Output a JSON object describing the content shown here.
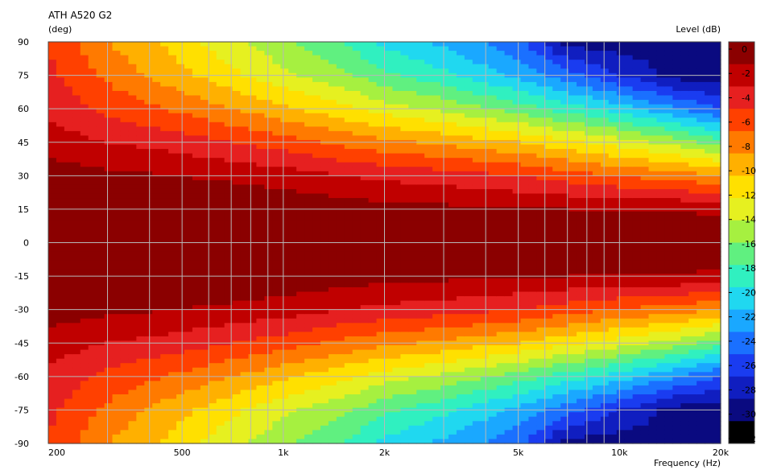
{
  "chart_data": {
    "type": "heatmap",
    "title": "ATH A520 G2",
    "ylabel": "(deg)",
    "xlabel": "Frequency  (Hz)",
    "colorbar_label": "Level  (dB)",
    "x_scale": "log",
    "xlim": [
      200,
      20000
    ],
    "ylim": [
      -90,
      90
    ],
    "x_ticks": [
      200,
      500,
      1000,
      2000,
      5000,
      10000,
      20000
    ],
    "x_tick_labels": [
      "200",
      "500",
      "1k",
      "2k",
      "5k",
      "10k",
      "20k"
    ],
    "y_ticks": [
      90,
      75,
      60,
      45,
      30,
      15,
      0,
      -15,
      -30,
      -45,
      -60,
      -75,
      -90
    ],
    "y_tick_labels": [
      "90",
      "75",
      "60",
      "45",
      "30",
      "15",
      "0",
      "-15",
      "-30",
      "-45",
      "-60",
      "-75",
      "-90"
    ],
    "colorbar_ticks": [
      0,
      -2,
      -4,
      -6,
      -8,
      -10,
      -12,
      -14,
      -16,
      -18,
      -20,
      -22,
      -24,
      -26,
      -28,
      -30,
      -32
    ],
    "colorbar_tick_labels": [
      "0",
      "-2",
      "-4",
      "-6",
      "-8",
      "-10",
      "-12",
      "-14",
      "-16",
      "-18",
      "-20",
      "-22",
      "-24",
      "-26",
      "-28",
      "-30",
      "-32"
    ],
    "level_range_db": [
      -33,
      0
    ],
    "grid": true,
    "colorbar_colors": [
      "#8b0000",
      "#c00000",
      "#e62020",
      "#ff4000",
      "#ff7a00",
      "#ffb000",
      "#ffe000",
      "#e6f020",
      "#a6f040",
      "#60f080",
      "#30f0c0",
      "#20d8f0",
      "#1aa8ff",
      "#1a70ff",
      "#1a3cf0",
      "#101ec0",
      "#0a0a80",
      "#000000"
    ],
    "contour_level_at_angle": {
      "frequencies_hz": [
        200,
        300,
        500,
        700,
        1000,
        1500,
        2000,
        3000,
        5000,
        7000,
        10000,
        15000,
        20000
      ],
      "angles_deg": [
        0,
        15,
        30,
        45,
        60,
        75,
        90
      ],
      "levels_db": [
        [
          0,
          0,
          -1,
          -3,
          -4.5,
          -5.5,
          -6
        ],
        [
          0,
          0,
          -1.5,
          -4,
          -6.5,
          -8.5,
          -10
        ],
        [
          0,
          0,
          -2,
          -5,
          -8.5,
          -11.5,
          -13
        ],
        [
          0,
          0,
          -2.5,
          -6,
          -10,
          -13.5,
          -15.5
        ],
        [
          0,
          -0.5,
          -3,
          -7,
          -11.5,
          -15.5,
          -17.5
        ],
        [
          0,
          -1,
          -4,
          -8.5,
          -13.5,
          -17.5,
          -20
        ],
        [
          0,
          -1.3,
          -4.5,
          -9.5,
          -15,
          -19.5,
          -22.5
        ],
        [
          0,
          -1.5,
          -5,
          -10.5,
          -16.5,
          -21.5,
          -24.5
        ],
        [
          0,
          -1.8,
          -6,
          -12,
          -19,
          -24.5,
          -27.5
        ],
        [
          0,
          -2,
          -7,
          -13.5,
          -21,
          -27,
          -33
        ],
        [
          0,
          -2,
          -8,
          -15,
          -23,
          -30,
          -33
        ],
        [
          0,
          -2.2,
          -9,
          -17,
          -26,
          -33,
          -33
        ],
        [
          0,
          -2.5,
          -10,
          -19,
          -28,
          -33,
          -33
        ]
      ]
    }
  }
}
